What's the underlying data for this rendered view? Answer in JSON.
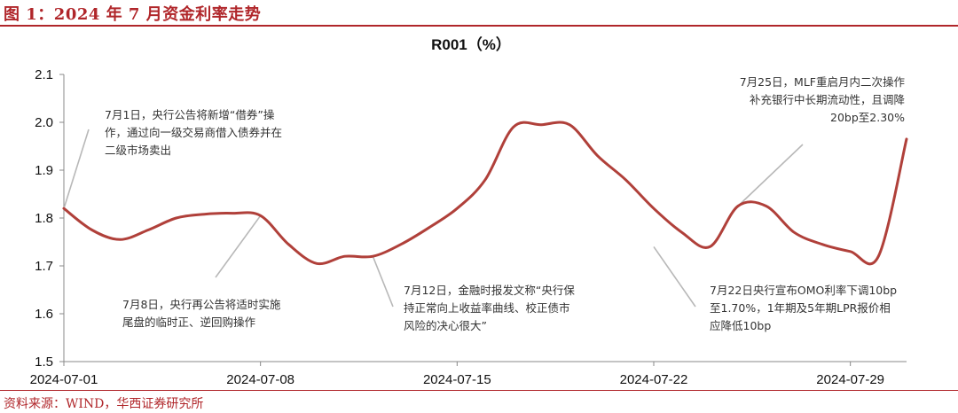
{
  "figure_title": "图 1：2024 年 7 月资金利率走势",
  "source": "资料来源：WIND，华西证券研究所",
  "colors": {
    "accent": "#b0262a",
    "line": "#b0403a",
    "leader": "#b8b8b8"
  },
  "chart_data": {
    "type": "line",
    "title": "R001（%）",
    "xlabel": "",
    "ylabel": "",
    "ylim": [
      1.5,
      2.1
    ],
    "yticks": [
      "1.5",
      "1.6",
      "1.7",
      "1.8",
      "1.9",
      "2.0",
      "2.1"
    ],
    "xlim": [
      "2024-07-01",
      "2024-07-31"
    ],
    "xticks": [
      "2024-07-01",
      "2024-07-08",
      "2024-07-15",
      "2024-07-22",
      "2024-07-29"
    ],
    "grid": false,
    "series": [
      {
        "name": "",
        "x": [
          "2024-07-01",
          "2024-07-02",
          "2024-07-03",
          "2024-07-04",
          "2024-07-05",
          "2024-07-06",
          "2024-07-07",
          "2024-07-08",
          "2024-07-09",
          "2024-07-10",
          "2024-07-11",
          "2024-07-12",
          "2024-07-13",
          "2024-07-14",
          "2024-07-15",
          "2024-07-16",
          "2024-07-17",
          "2024-07-18",
          "2024-07-19",
          "2024-07-20",
          "2024-07-21",
          "2024-07-22",
          "2024-07-23",
          "2024-07-24",
          "2024-07-25",
          "2024-07-26",
          "2024-07-27",
          "2024-07-28",
          "2024-07-29",
          "2024-07-30",
          "2024-07-31"
        ],
        "y": [
          1.82,
          1.775,
          1.755,
          1.775,
          1.8,
          1.808,
          1.81,
          1.805,
          1.745,
          1.705,
          1.72,
          1.72,
          1.745,
          1.78,
          1.82,
          1.88,
          1.99,
          1.995,
          1.995,
          1.93,
          1.88,
          1.82,
          1.77,
          1.74,
          1.825,
          1.825,
          1.77,
          1.745,
          1.73,
          1.72,
          1.965
        ]
      }
    ],
    "annotations": [
      {
        "x": "2024-07-01",
        "y": 1.82,
        "lines": [
          "7月1日，央行公告将新增“借券”操",
          "作，通过向一级交易商借入债券并在",
          "二级市场卖出"
        ]
      },
      {
        "x": "2024-07-08",
        "y": 1.805,
        "lines": [
          "7月8日，央行再公告将适时实施",
          "尾盘的临时正、逆回购操作"
        ]
      },
      {
        "x": "2024-07-12",
        "y": 1.72,
        "lines": [
          "7月12日，金融时报发文称“央行保",
          "持正常向上收益率曲线、校正债市",
          "风险的决心很大”"
        ]
      },
      {
        "x": "2024-07-22",
        "y": 1.74,
        "lines": [
          "7月22日央行宣布OMO利率下调10bp",
          "至1.70%，1年期及5年期LPR报价相",
          "应降低10bp"
        ]
      },
      {
        "x": "2024-07-25",
        "y": 1.825,
        "lines": [
          "7月25日，MLF重启月内二次操作",
          "补充银行中长期流动性，且调降",
          "20bp至2.30%"
        ]
      }
    ]
  }
}
